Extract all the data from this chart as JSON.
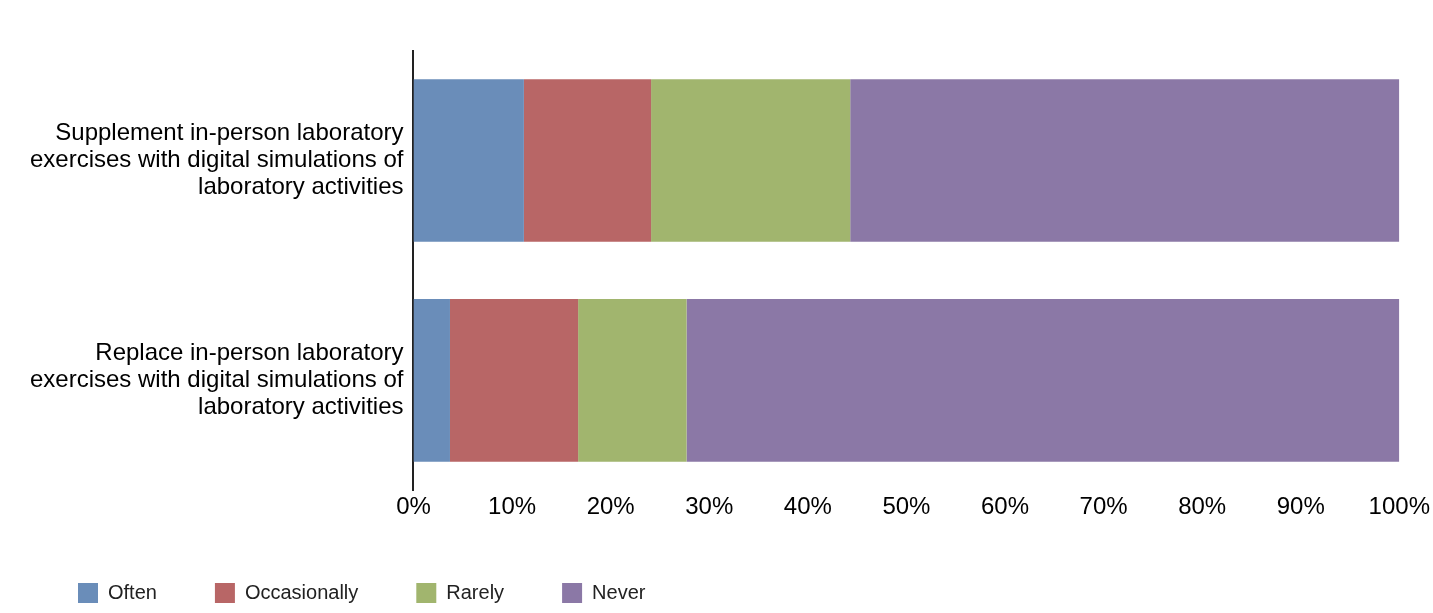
{
  "chart_data": {
    "type": "bar",
    "orientation": "horizontal",
    "stacked": true,
    "categories": [
      "Supplement in-person laboratory exercises with digital simulations of laboratory activities",
      "Replace in-person laboratory exercises with digital simulations of laboratory activities"
    ],
    "series": [
      {
        "name": "Often",
        "color": "#6a8db9",
        "values": [
          11.2,
          3.7
        ]
      },
      {
        "name": "Occasionally",
        "color": "#b86666",
        "values": [
          12.9,
          13.0
        ]
      },
      {
        "name": "Rarely",
        "color": "#a1b56e",
        "values": [
          20.2,
          11.0
        ]
      },
      {
        "name": "Never",
        "color": "#8b78a6",
        "values": [
          55.7,
          72.3
        ]
      }
    ],
    "xlim": [
      0,
      100
    ],
    "xticks": [
      {
        "value": 0,
        "label": "0%"
      },
      {
        "value": 10,
        "label": "10%"
      },
      {
        "value": 20,
        "label": "20%"
      },
      {
        "value": 30,
        "label": "30%"
      },
      {
        "value": 40,
        "label": "40%"
      },
      {
        "value": 50,
        "label": "50%"
      },
      {
        "value": 60,
        "label": "60%"
      },
      {
        "value": 70,
        "label": "70%"
      },
      {
        "value": 80,
        "label": "80%"
      },
      {
        "value": 90,
        "label": "90%"
      },
      {
        "value": 100,
        "label": "100%"
      }
    ],
    "grid": false,
    "legend": "bottom left"
  }
}
